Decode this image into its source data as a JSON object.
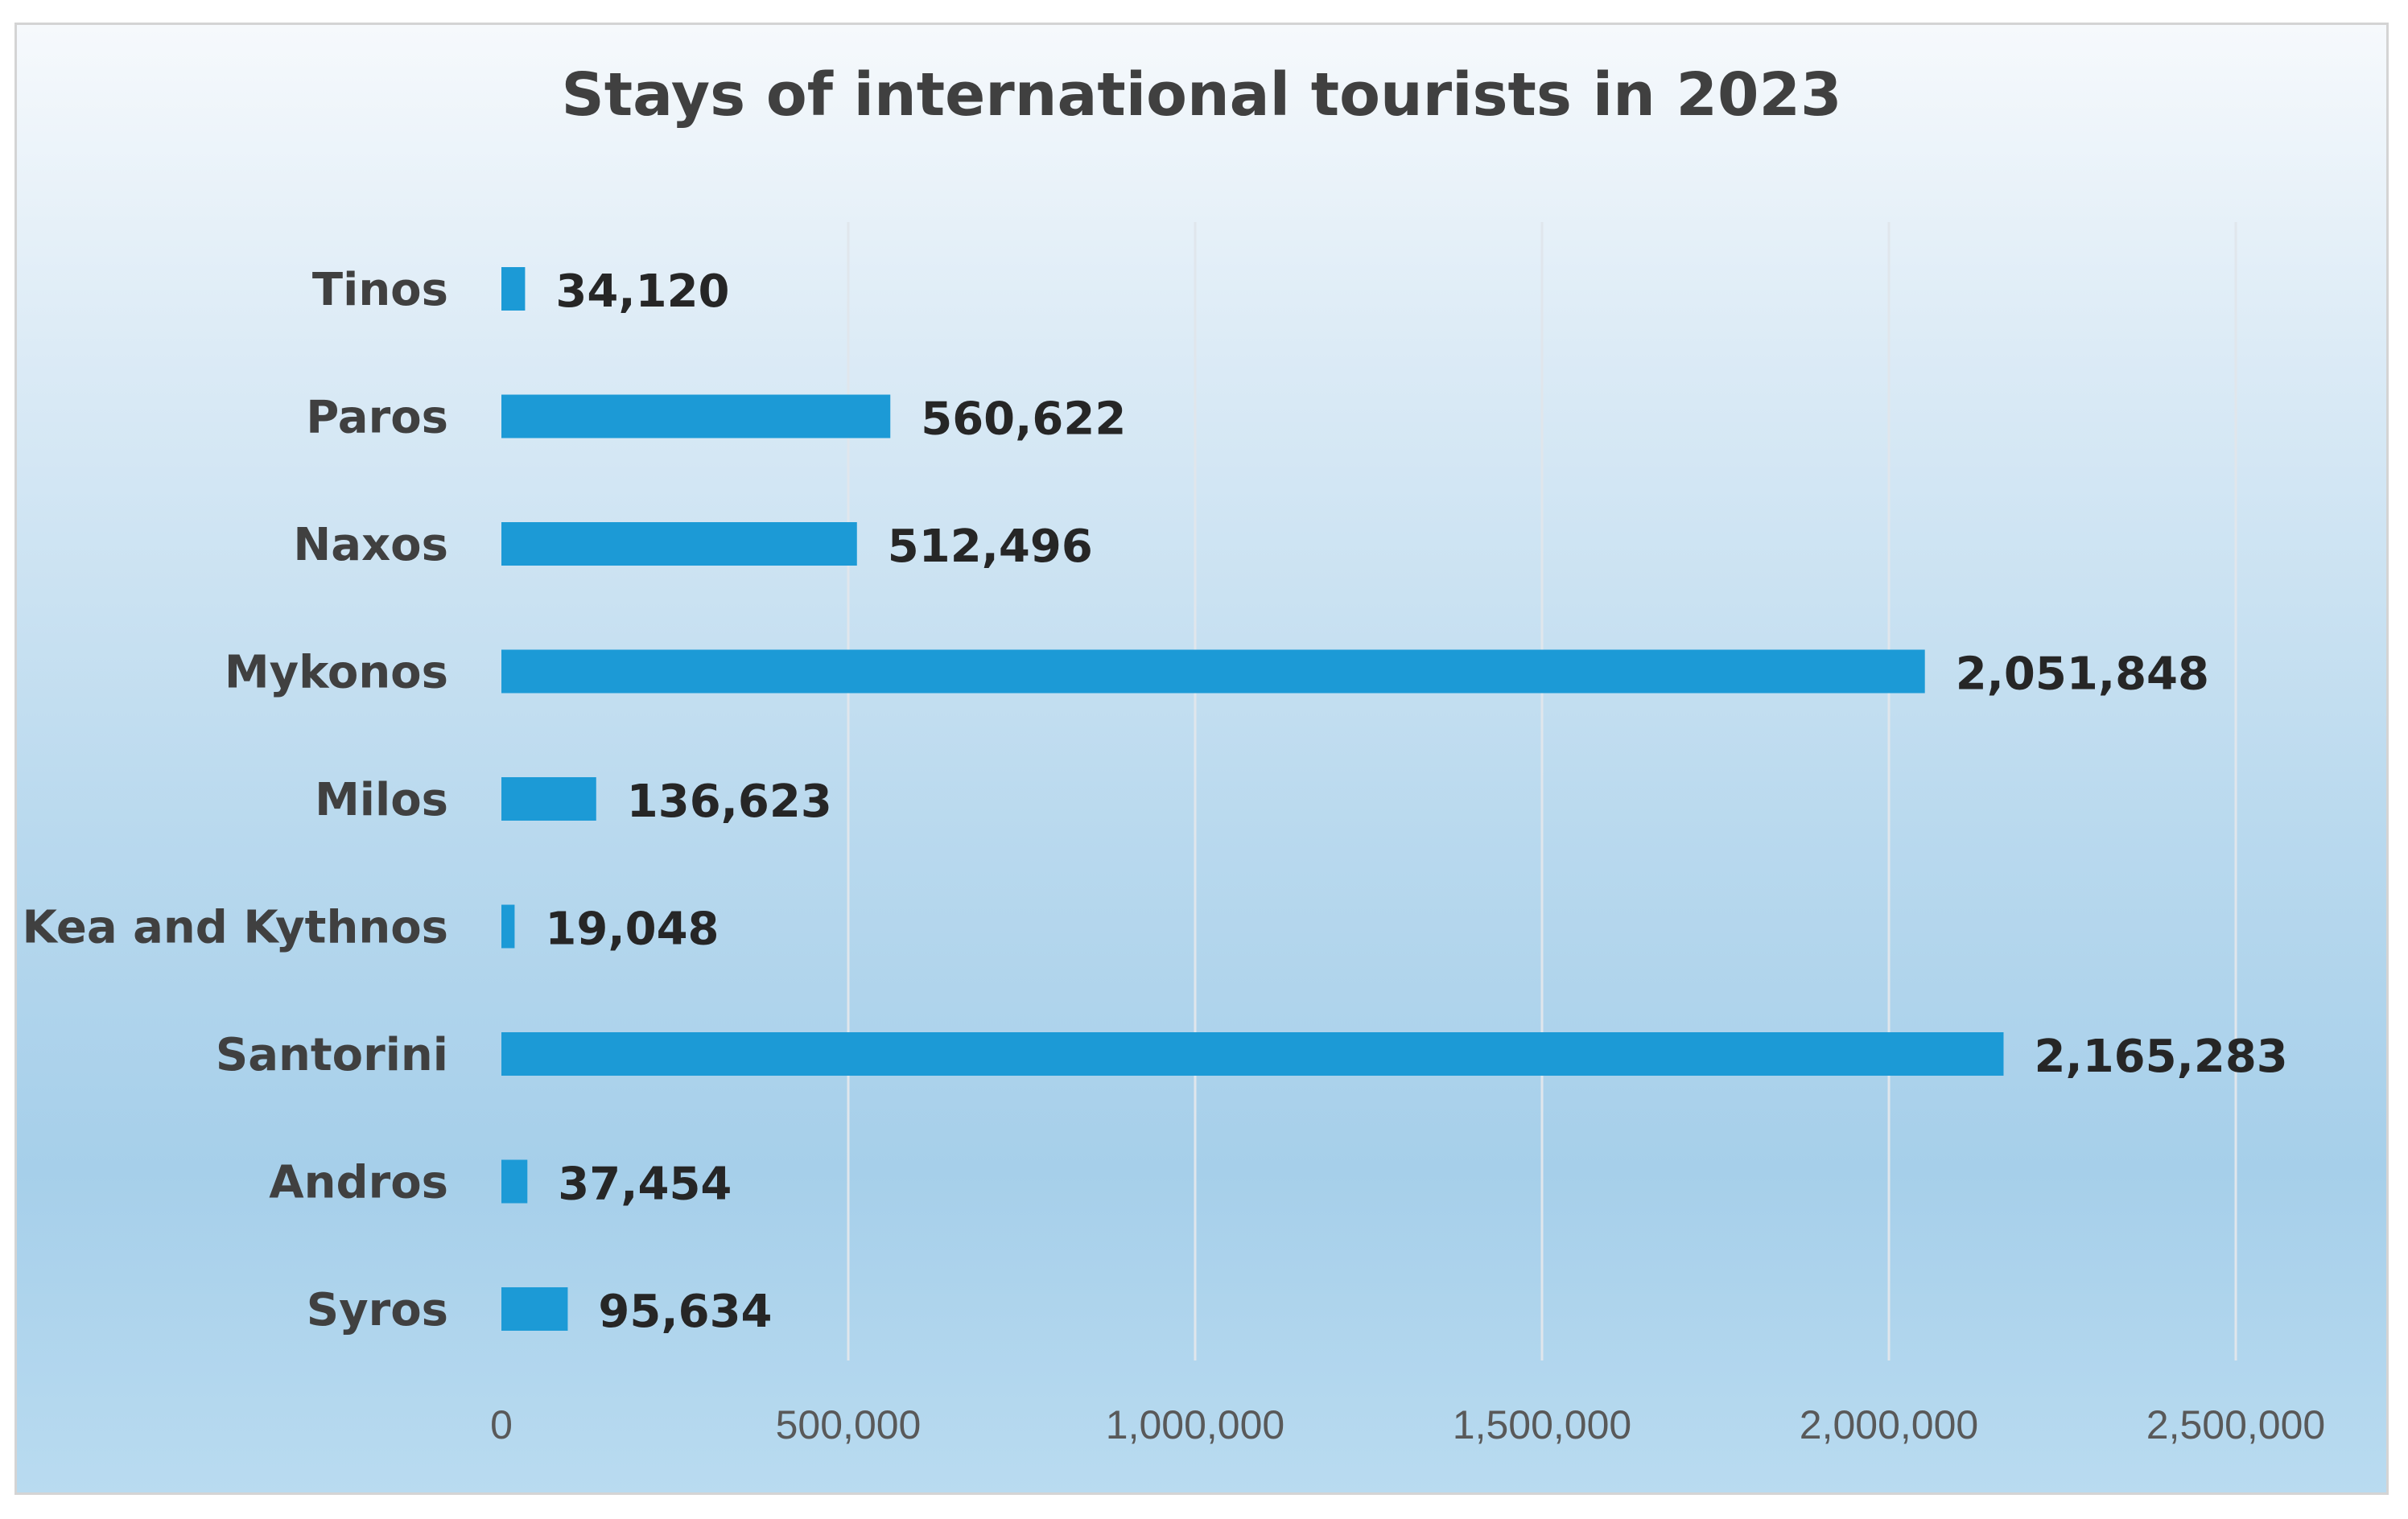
{
  "chart_data": {
    "type": "bar",
    "orientation": "horizontal",
    "title": "Stays of international tourists in 2023",
    "categories": [
      "Tinos",
      "Paros",
      "Naxos",
      "Mykonos",
      "Milos",
      "Kea and Kythnos",
      "Santorini",
      "Andros",
      "Syros"
    ],
    "values": [
      34120,
      560622,
      512496,
      2051848,
      136623,
      19048,
      2165283,
      37454,
      95634
    ],
    "value_labels": [
      "34,120",
      "560,622",
      "512,496",
      "2,051,848",
      "136,623",
      "19,048",
      "2,165,283",
      "37,454",
      "95,634"
    ],
    "xlim": [
      0,
      2500000
    ],
    "xticks": [
      0,
      500000,
      1000000,
      1500000,
      2000000,
      2500000
    ],
    "xtick_labels": [
      "0",
      "500,000",
      "1,000,000",
      "1,500,000",
      "2,000,000",
      "2,500,000"
    ],
    "xlabel": "",
    "ylabel": "",
    "grid": "vertical",
    "legend": "none",
    "bar_color": "#1c9ad6"
  }
}
